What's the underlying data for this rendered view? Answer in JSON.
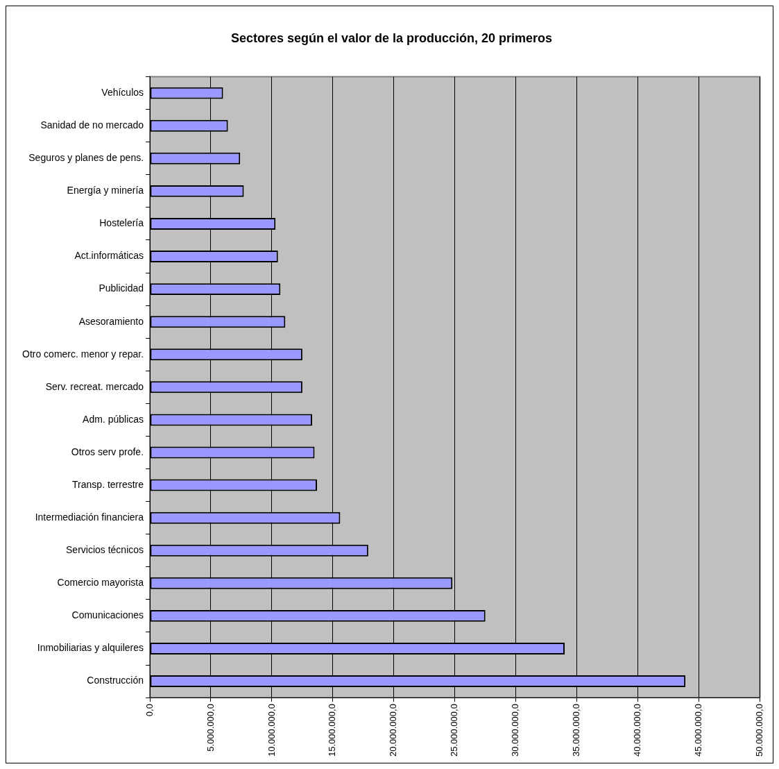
{
  "chart_data": {
    "type": "bar",
    "orientation": "horizontal",
    "title": "Sectores según el valor de la producción, 20 primeros",
    "categories": [
      "Vehículos",
      "Sanidad de no mercado",
      "Seguros y planes de pens.",
      "Energía y minería",
      "Hostelería",
      "Act.informáticas",
      "Publicidad",
      "Asesoramiento",
      "Otro comerc. menor y repar.",
      "Serv. recreat. mercado",
      "Adm. públicas",
      "Otros serv profe.",
      "Transp. terrestre",
      "Intermediación financiera",
      "Servicios técnicos",
      "Comercio mayorista",
      "Comunicaciones",
      "Inmobiliarias y alquileres",
      "Construcción"
    ],
    "values": [
      6000000,
      6400000,
      7400000,
      7700000,
      10300000,
      10500000,
      10700000,
      11100000,
      12500000,
      12500000,
      13300000,
      13500000,
      13700000,
      15600000,
      17900000,
      24800000,
      27500000,
      34000000,
      43900000
    ],
    "color": "#9999ff",
    "xlim": [
      0,
      50000000
    ],
    "xticks": [
      {
        "value": 0,
        "label": "0,0"
      },
      {
        "value": 5000000,
        "label": "5.000.000,0"
      },
      {
        "value": 10000000,
        "label": "10.000.000,0"
      },
      {
        "value": 15000000,
        "label": "15.000.000,0"
      },
      {
        "value": 20000000,
        "label": "20.000.000,0"
      },
      {
        "value": 25000000,
        "label": "25.000.000,0"
      },
      {
        "value": 30000000,
        "label": "30.000.000,0"
      },
      {
        "value": 35000000,
        "label": "35.000.000,0"
      },
      {
        "value": 40000000,
        "label": "40.000.000,0"
      },
      {
        "value": 45000000,
        "label": "45.000.000,0"
      },
      {
        "value": 50000000,
        "label": "50.000.000,0"
      }
    ],
    "grid": "x"
  }
}
